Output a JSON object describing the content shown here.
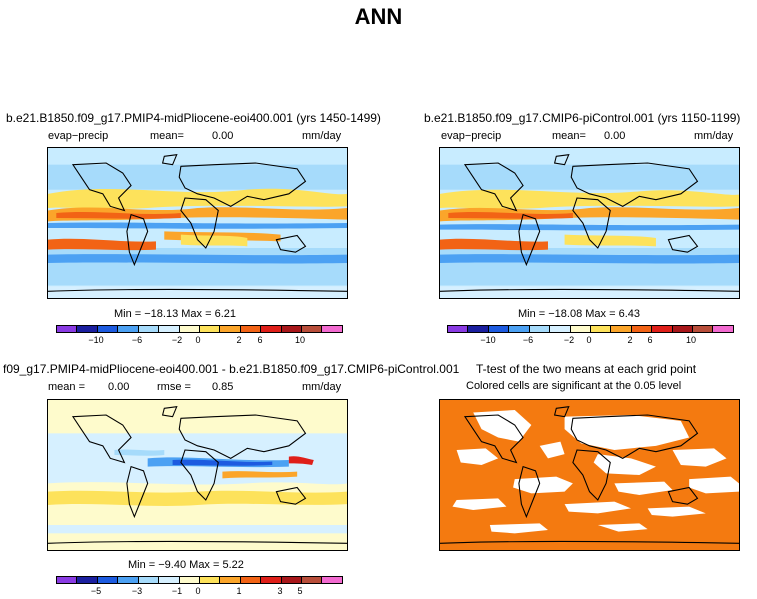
{
  "title": "ANN",
  "colors": {
    "land_coast": "#000000",
    "ocean_bg": "#c8ecff",
    "ttest_color": "#f47a10",
    "colorbar": [
      "#8a3be3",
      "#1b1f9f",
      "#1d5be0",
      "#4ca1f3",
      "#a6dbfb",
      "#d6f0ff",
      "#fefbcc",
      "#fde25b",
      "#fba52a",
      "#f26315",
      "#df1f19",
      "#a8171a",
      "#b84e3a",
      "#f26ad0"
    ]
  },
  "panels": [
    {
      "name": "panel-top-left",
      "title": "b.e21.B1850.f09_g17.PMIP4-midPliocene-eoi400.001 (yrs 1450-1499)",
      "left_label": "evap−precip",
      "mean_label": "mean=",
      "mean_value": "0.00",
      "units": "mm/day",
      "minmax": "Min = −18.13 Max =    6.21",
      "ticks": [
        "−10",
        "−6",
        "−2",
        "0",
        "2",
        "6",
        "10"
      ]
    },
    {
      "name": "panel-top-right",
      "title": "b.e21.B1850.f09_g17.CMIP6-piControl.001 (yrs 1150-1199)",
      "left_label": "evap−precip",
      "mean_label": "mean=",
      "mean_value": "0.00",
      "units": "mm/day",
      "minmax": "Min = −18.08 Max =    6.43",
      "ticks": [
        "−10",
        "−6",
        "−2",
        "0",
        "2",
        "6",
        "10"
      ]
    },
    {
      "name": "panel-bottom-left",
      "title": "f09_g17.PMIP4-midPliocene-eoi400.001 - b.e21.B1850.f09_g17.CMIP6-piControl.001",
      "mean_label": "mean =",
      "mean_value": "0.00",
      "rmse_label": "rmse =",
      "rmse_value": "0.85",
      "units": "mm/day",
      "minmax": "Min =  −9.40 Max =    5.22",
      "ticks": [
        "−5",
        "−3",
        "−1",
        "0",
        "1",
        "3",
        "5"
      ]
    },
    {
      "name": "panel-bottom-right",
      "title": "T-test of the two means at each grid point",
      "subtitle": "Colored cells are significant at the 0.05 level"
    }
  ]
}
